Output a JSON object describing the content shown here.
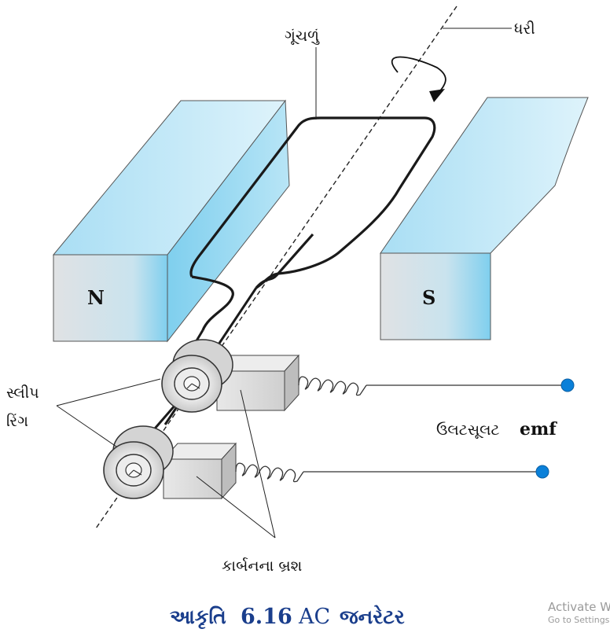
{
  "diagram": {
    "labels": {
      "coil": "ગૂંચળું",
      "axis": "ધરી",
      "pole_north": "N",
      "pole_south": "S",
      "slip_ring_line1": "સ્લીપ",
      "slip_ring_line2": "રિંગ",
      "emf_script": "ઉલટસૂલટ",
      "emf_latin": "emf",
      "brushes": "કાર્બનના બ્રશ"
    },
    "caption": {
      "prefix": "આકૃતિ",
      "number": "6.16",
      "ac": "AC",
      "suffix": "જનરેટર"
    }
  },
  "colors": {
    "magnet_face": "#d6dde2",
    "magnet_top": "#b5e6f7",
    "caption_color": "#1a3e8c",
    "terminal_dot": "#0a80d9"
  },
  "watermark": {
    "line1": "Activate Windows",
    "line2": "Go to Settings to activate Windows."
  }
}
